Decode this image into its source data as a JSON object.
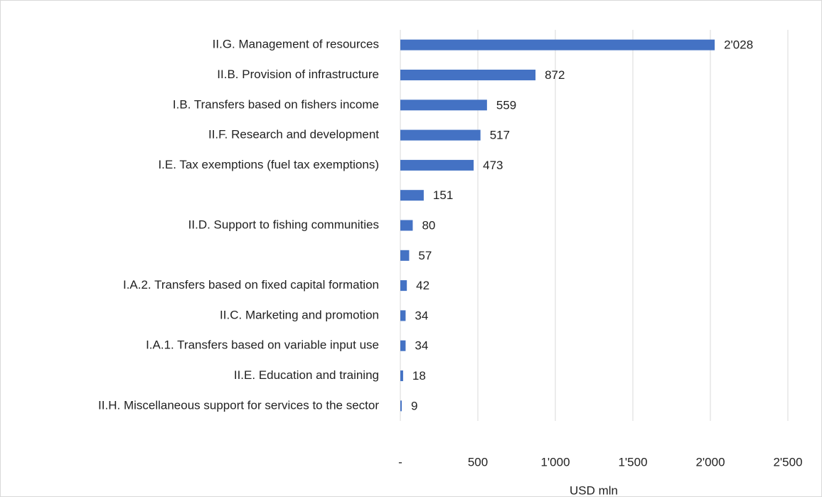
{
  "chart_data": {
    "type": "hbar",
    "categories": [
      "II.G. Management of resources",
      "II.B. Provision of infrastructure",
      "I.B. Transfers based on fishers income",
      "II.F. Research and development",
      "I.E. Tax exemptions (fuel tax exemptions)",
      null,
      "II.D. Support to fishing communities",
      null,
      "I.A.2. Transfers based on fixed capital formation",
      "II.C. Marketing and promotion",
      "I.A.1. Transfers based on variable input use",
      "II.E. Education and training",
      "II.H. Miscellaneous support for services to the sector"
    ],
    "values": [
      2028,
      872,
      559,
      517,
      473,
      151,
      80,
      57,
      42,
      34,
      34,
      18,
      9
    ],
    "value_labels": [
      "2'028",
      "872",
      "559",
      "517",
      "473",
      "151",
      "80",
      "57",
      "42",
      "34",
      "34",
      "18",
      "9"
    ],
    "color": "#4472c4",
    "xlabel": "USD mln",
    "xlim": [
      0,
      2500
    ],
    "xticks": [
      {
        "value": 0,
        "label": "-"
      },
      500,
      {
        "value": 1000,
        "label": "1'000"
      },
      {
        "value": 1500,
        "label": "1'500"
      },
      {
        "value": 2000,
        "label": "2'000"
      },
      {
        "value": 2500,
        "label": "2'500"
      }
    ],
    "grid": true
  }
}
